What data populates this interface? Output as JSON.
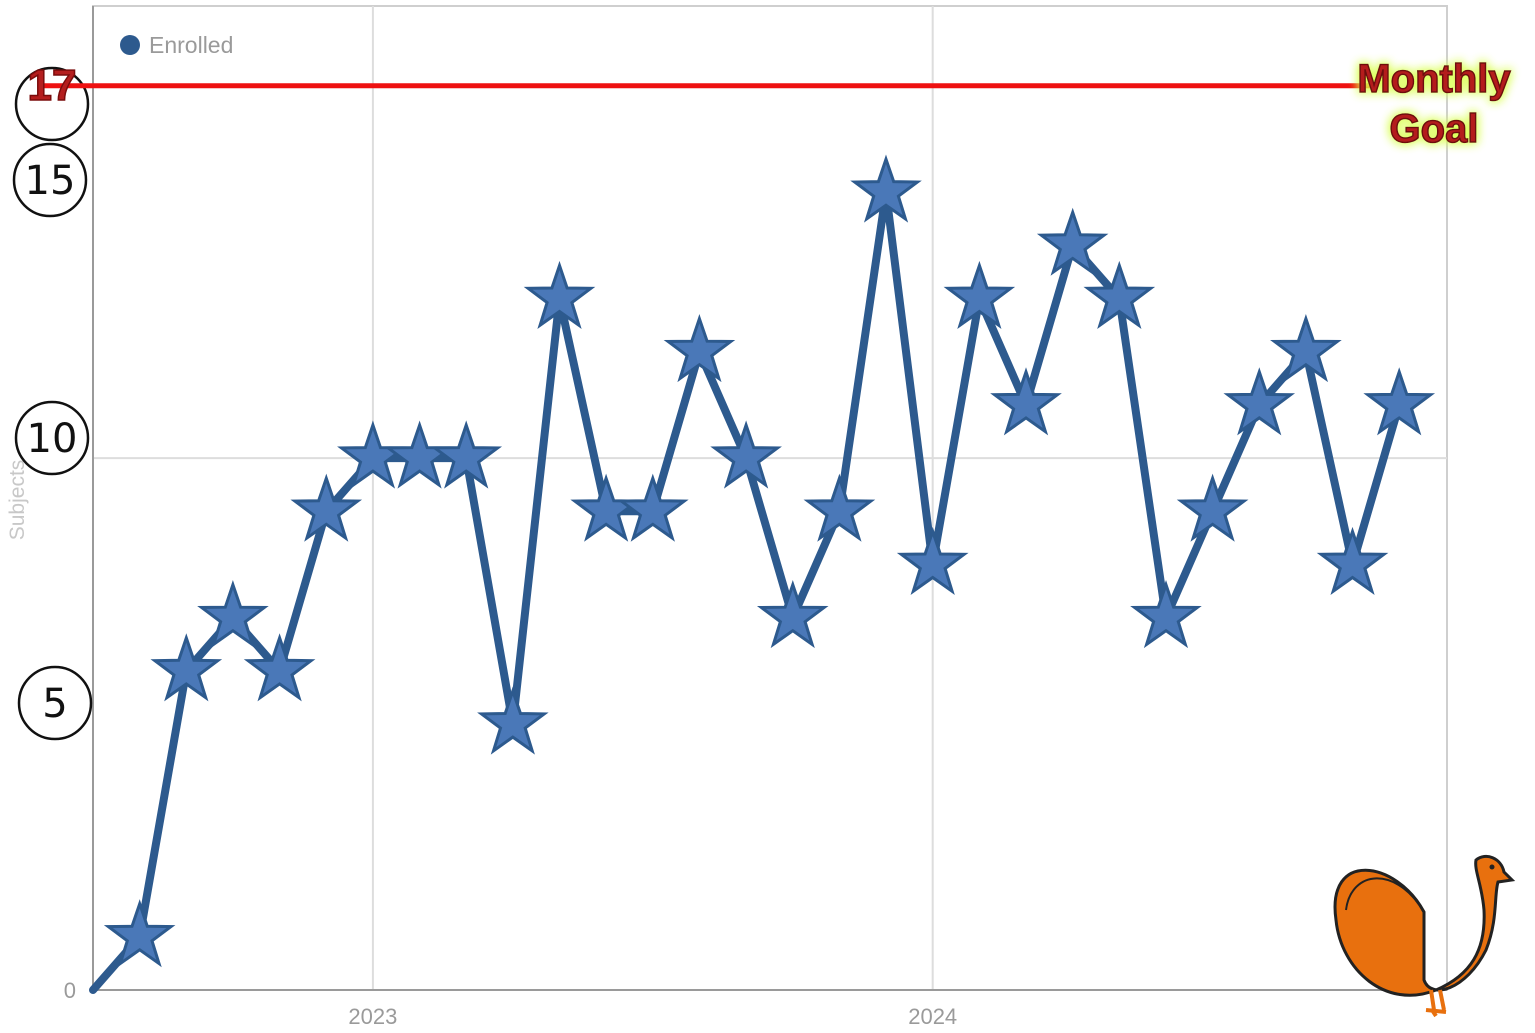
{
  "chart_data": {
    "type": "line",
    "xlabel": "",
    "ylabel": "Subjects",
    "x_tick_labels": [
      "2023",
      "2024"
    ],
    "y_tick_labels": [
      "0",
      "5",
      "10",
      "15"
    ],
    "ylim": [
      0,
      18.5
    ],
    "grid": true,
    "legend_position": "top-left",
    "series": [
      {
        "name": "Enrolled",
        "color": "#2d5a8e",
        "marker": "star",
        "values": [
          0,
          1,
          6,
          7,
          6,
          9,
          10,
          10,
          10,
          5,
          13,
          9,
          9,
          12,
          10,
          7,
          9,
          15,
          8,
          13,
          11,
          14,
          13,
          7,
          9,
          11,
          12,
          8,
          11
        ]
      }
    ],
    "goal_line": {
      "value": 17,
      "label": "Monthly Goal",
      "color": "#ee1111"
    },
    "annotations": {
      "circled_values": [
        "17",
        "15",
        "10",
        "5"
      ],
      "decorative_icon": "turkey-icon"
    }
  },
  "legend": {
    "marker_color": "#2d5a8e"
  }
}
